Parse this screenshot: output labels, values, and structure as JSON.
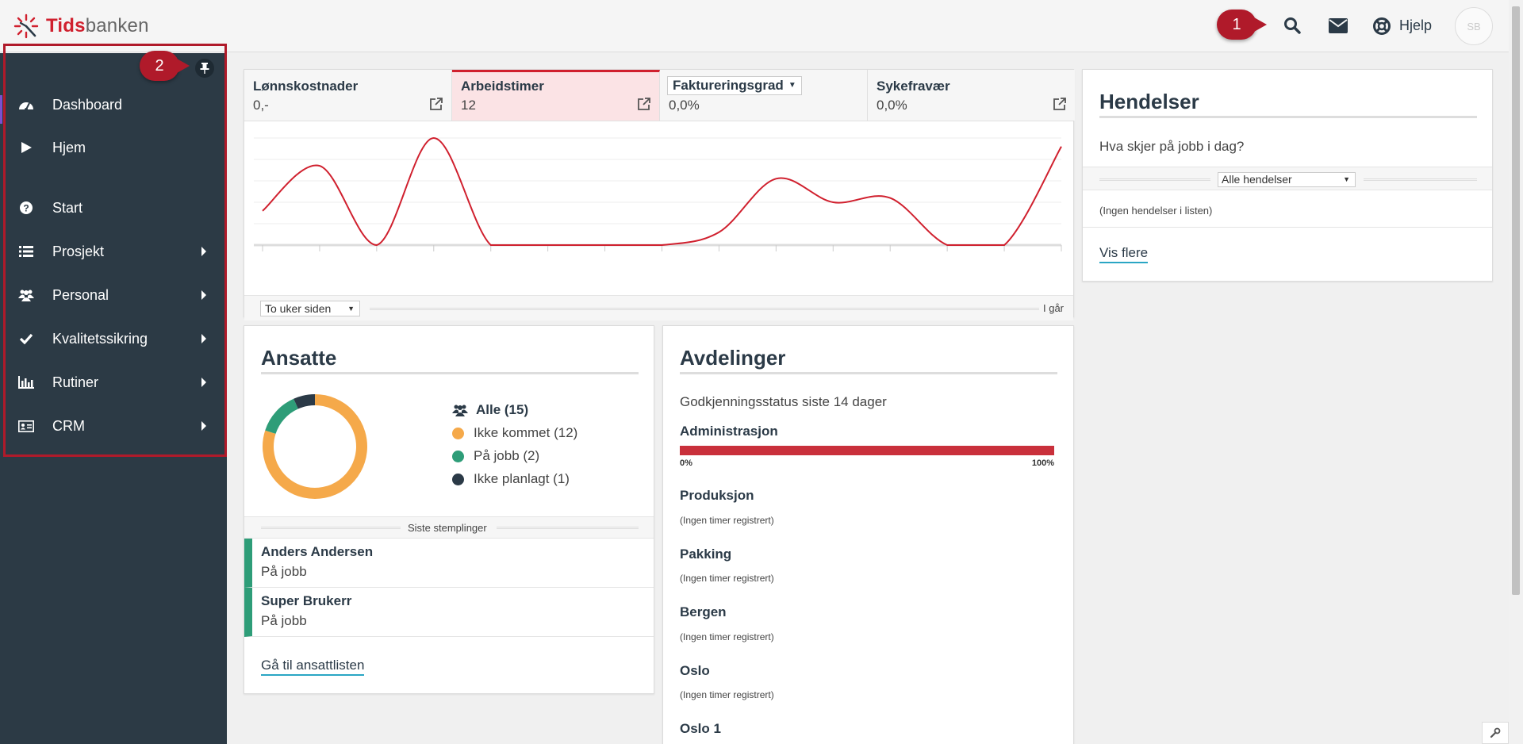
{
  "app": {
    "brand_part1": "Tids",
    "brand_part2": "banken",
    "help_label": "Hjelp",
    "avatar_initials": "SB",
    "callout_1": "1",
    "callout_2": "2"
  },
  "colors": {
    "accent_red": "#d0202e",
    "sidebar_bg": "#2c3a45",
    "not_arrived": "#f5a94a",
    "at_work": "#2e9d78",
    "not_planned": "#2b3a47",
    "link_underline": "#2aa6c4"
  },
  "sidebar": {
    "items": [
      {
        "label": "Dashboard",
        "icon": "dashboard-icon",
        "submenu": false
      },
      {
        "label": "Hjem",
        "icon": "play-icon",
        "submenu": false
      },
      {
        "label": "Start",
        "icon": "question-circle-icon",
        "submenu": false
      },
      {
        "label": "Prosjekt",
        "icon": "list-icon",
        "submenu": true
      },
      {
        "label": "Personal",
        "icon": "users-icon",
        "submenu": true
      },
      {
        "label": "Kvalitetssikring",
        "icon": "check-icon",
        "submenu": true
      },
      {
        "label": "Rutiner",
        "icon": "bar-chart-icon",
        "submenu": true
      },
      {
        "label": "CRM",
        "icon": "id-card-icon",
        "submenu": true
      }
    ]
  },
  "kpis": [
    {
      "label": "Lønnskostnader",
      "value": "0,-"
    },
    {
      "label": "Arbeidstimer",
      "value": "12"
    },
    {
      "label": "Faktureringsgrad",
      "value": "0,0%"
    },
    {
      "label": "Sykefravær",
      "value": "0,0%"
    }
  ],
  "chart_data": {
    "type": "line",
    "title": "",
    "series": [
      {
        "values": [
          1.6,
          3.7,
          0,
          5,
          0,
          0,
          0,
          0,
          0.6,
          3.1,
          2.0,
          2.2,
          0,
          0,
          4.6
        ]
      }
    ],
    "ylim": [
      0,
      5
    ],
    "range_select": "To uker siden",
    "range_end": "I går"
  },
  "events": {
    "title": "Hendelser",
    "subtitle": "Hva skjer på jobb i dag?",
    "filter": "Alle hendelser",
    "empty": "(Ingen hendelser i listen)",
    "more": "Vis flere"
  },
  "employees": {
    "title": "Ansatte",
    "all": "Alle (15)",
    "legend": [
      {
        "label": "Ikke kommet (12)",
        "count": 12,
        "color": "#f5a94a"
      },
      {
        "label": "På jobb (2)",
        "count": 2,
        "color": "#2e9d78"
      },
      {
        "label": "Ikke planlagt (1)",
        "count": 1,
        "color": "#2b3a47"
      }
    ],
    "recent_label": "Siste stemplinger",
    "recent": [
      {
        "name": "Anders Andersen",
        "status": "På jobb"
      },
      {
        "name": "Super Brukerr",
        "status": "På jobb"
      }
    ],
    "list_link": "Gå til ansattlisten"
  },
  "departments": {
    "title": "Avdelinger",
    "subtitle": "Godkjenningsstatus siste 14 dager",
    "items": [
      {
        "name": "Administrasjon",
        "note": ""
      },
      {
        "name": "Produksjon",
        "note": "(Ingen timer registrert)"
      },
      {
        "name": "Pakking",
        "note": "(Ingen timer registrert)"
      },
      {
        "name": "Bergen",
        "note": "(Ingen timer registrert)"
      },
      {
        "name": "Oslo",
        "note": "(Ingen timer registrert)"
      },
      {
        "name": "Oslo 1",
        "note": ""
      }
    ],
    "bar_fill_fraction": 1.0,
    "scale_min": "0%",
    "scale_max": "100%"
  }
}
